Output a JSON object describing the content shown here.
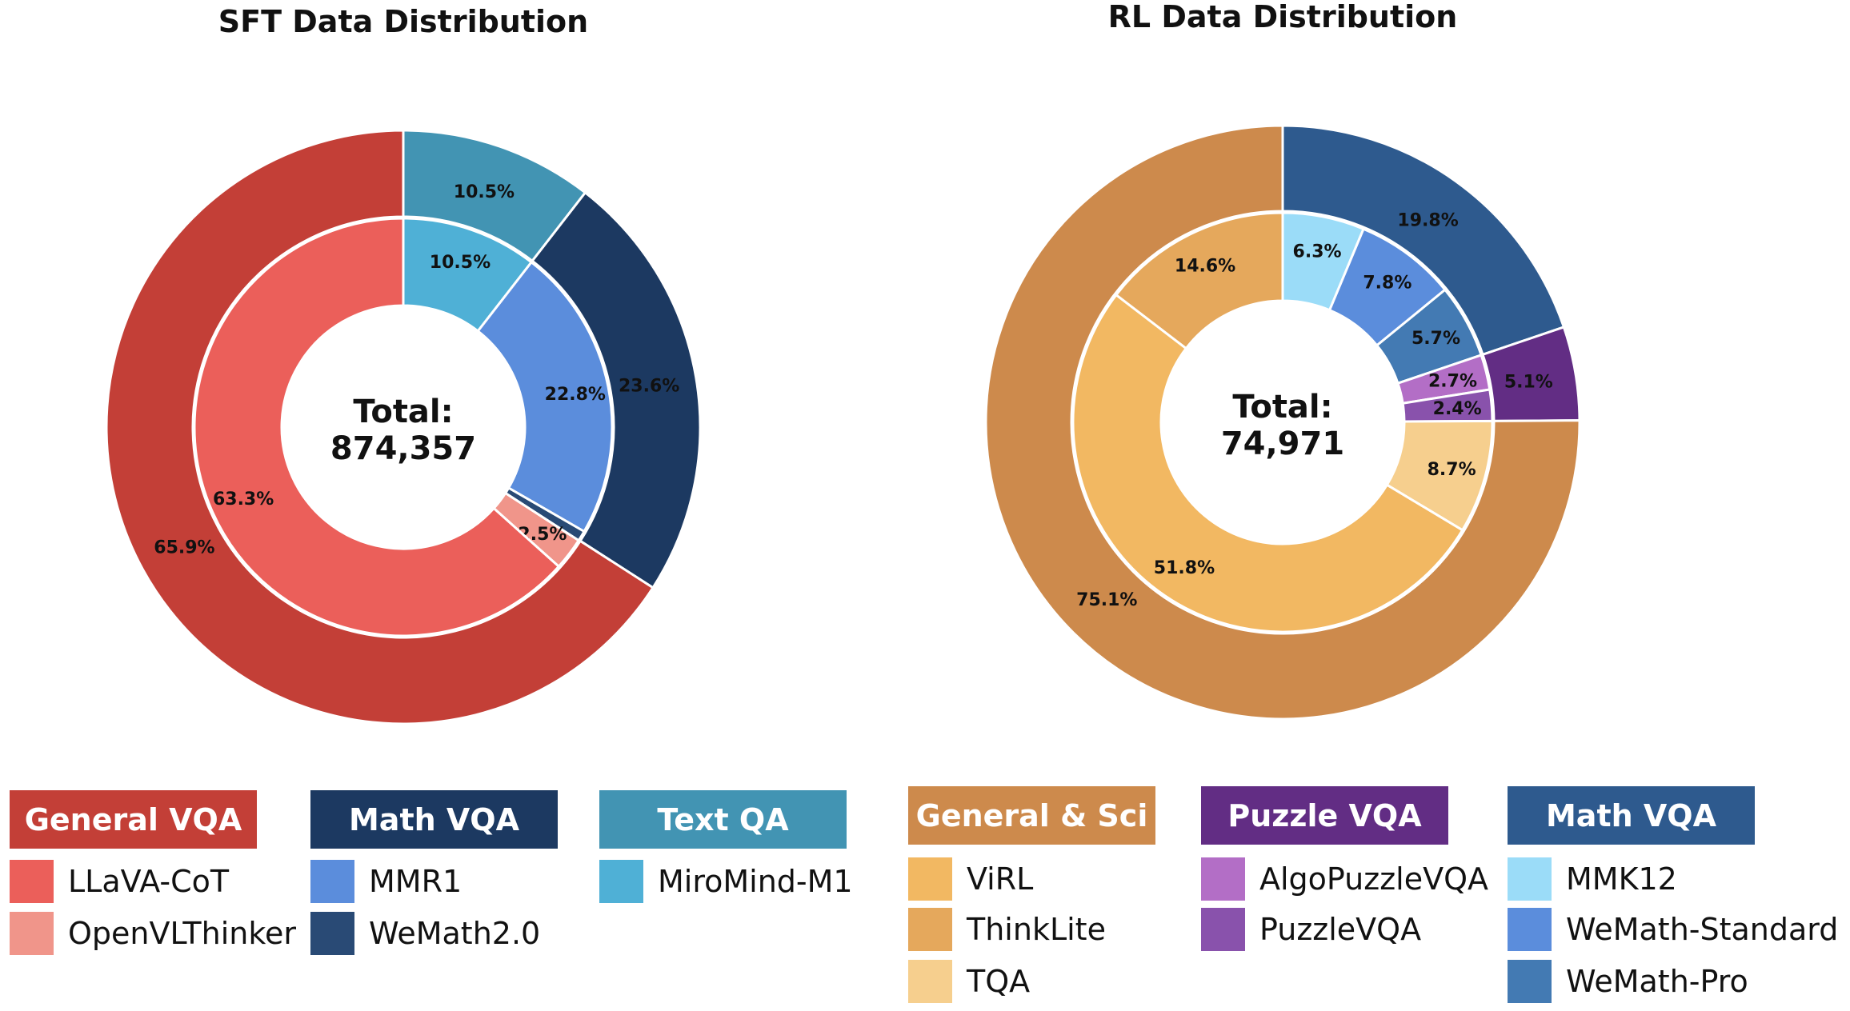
{
  "chart_data": [
    {
      "type": "pie",
      "title": "SFT Data Distribution",
      "center_label": {
        "line1": "Total:",
        "line2": "874,357"
      },
      "outer": [
        {
          "name": "Text QA",
          "value": 10.5,
          "color": "#4294b3"
        },
        {
          "name": "Math VQA",
          "value": 23.6,
          "color": "#1c3961"
        },
        {
          "name": "General VQA",
          "value": 65.9,
          "color": "#c33f37"
        }
      ],
      "inner": [
        {
          "name": "MiroMind-M1",
          "value": 10.5,
          "color": "#4fb0d6"
        },
        {
          "name": "MMR1",
          "value": 22.8,
          "color": "#5b8ddc"
        },
        {
          "name": "WeMath2.0",
          "value": 0.8,
          "color": "#294a75"
        },
        {
          "name": "OpenVLThinker",
          "value": 2.5,
          "color": "#f0958a"
        },
        {
          "name": "LLaVA-CoT",
          "value": 63.3,
          "color": "#eb5f5a"
        }
      ],
      "legend": [
        {
          "group": "General VQA",
          "color": "#c33f37",
          "items": [
            {
              "name": "LLaVA-CoT",
              "color": "#eb5f5a"
            },
            {
              "name": "OpenVLThinker",
              "color": "#f0958a"
            }
          ]
        },
        {
          "group": "Math VQA",
          "color": "#1c3961",
          "items": [
            {
              "name": "MMR1",
              "color": "#5b8ddc"
            },
            {
              "name": "WeMath2.0",
              "color": "#294a75"
            }
          ]
        },
        {
          "group": "Text QA",
          "color": "#4294b3",
          "items": [
            {
              "name": "MiroMind-M1",
              "color": "#4fb0d6"
            }
          ]
        }
      ]
    },
    {
      "type": "pie",
      "title": "RL Data Distribution",
      "center_label": {
        "line1": "Total:",
        "line2": "74,971"
      },
      "outer": [
        {
          "name": "Math VQA",
          "value": 19.8,
          "color": "#2e5a8e"
        },
        {
          "name": "Puzzle VQA",
          "value": 5.1,
          "color": "#622d84"
        },
        {
          "name": "General & Sci",
          "value": 75.1,
          "color": "#cd8a4c"
        }
      ],
      "inner": [
        {
          "name": "MMK12",
          "value": 6.3,
          "color": "#9bdcf8"
        },
        {
          "name": "WeMath-Standard",
          "value": 7.8,
          "color": "#5b8ddc"
        },
        {
          "name": "WeMath-Pro",
          "value": 5.7,
          "color": "#437ab3"
        },
        {
          "name": "AlgoPuzzleVQA",
          "value": 2.7,
          "color": "#b36ec6"
        },
        {
          "name": "PuzzleVQA",
          "value": 2.4,
          "color": "#8952ac"
        },
        {
          "name": "TQA",
          "value": 8.7,
          "color": "#f6cf8e"
        },
        {
          "name": "ViRL",
          "value": 51.8,
          "color": "#f2b862"
        },
        {
          "name": "ThinkLite",
          "value": 14.6,
          "color": "#e5a85c"
        }
      ],
      "legend": [
        {
          "group": "General & Sci",
          "color": "#cd8a4c",
          "items": [
            {
              "name": "ViRL",
              "color": "#f2b862"
            },
            {
              "name": "ThinkLite",
              "color": "#e5a85c"
            },
            {
              "name": "TQA",
              "color": "#f6cf8e"
            }
          ]
        },
        {
          "group": "Puzzle VQA",
          "color": "#622d84",
          "items": [
            {
              "name": "AlgoPuzzleVQA",
              "color": "#b36ec6"
            },
            {
              "name": "PuzzleVQA",
              "color": "#8952ac"
            }
          ]
        },
        {
          "group": "Math VQA",
          "color": "#2e5a8e",
          "items": [
            {
              "name": "MMK12",
              "color": "#9bdcf8"
            },
            {
              "name": "WeMath-Standard",
              "color": "#5b8ddc"
            },
            {
              "name": "WeMath-Pro",
              "color": "#437ab3"
            }
          ]
        }
      ]
    }
  ]
}
